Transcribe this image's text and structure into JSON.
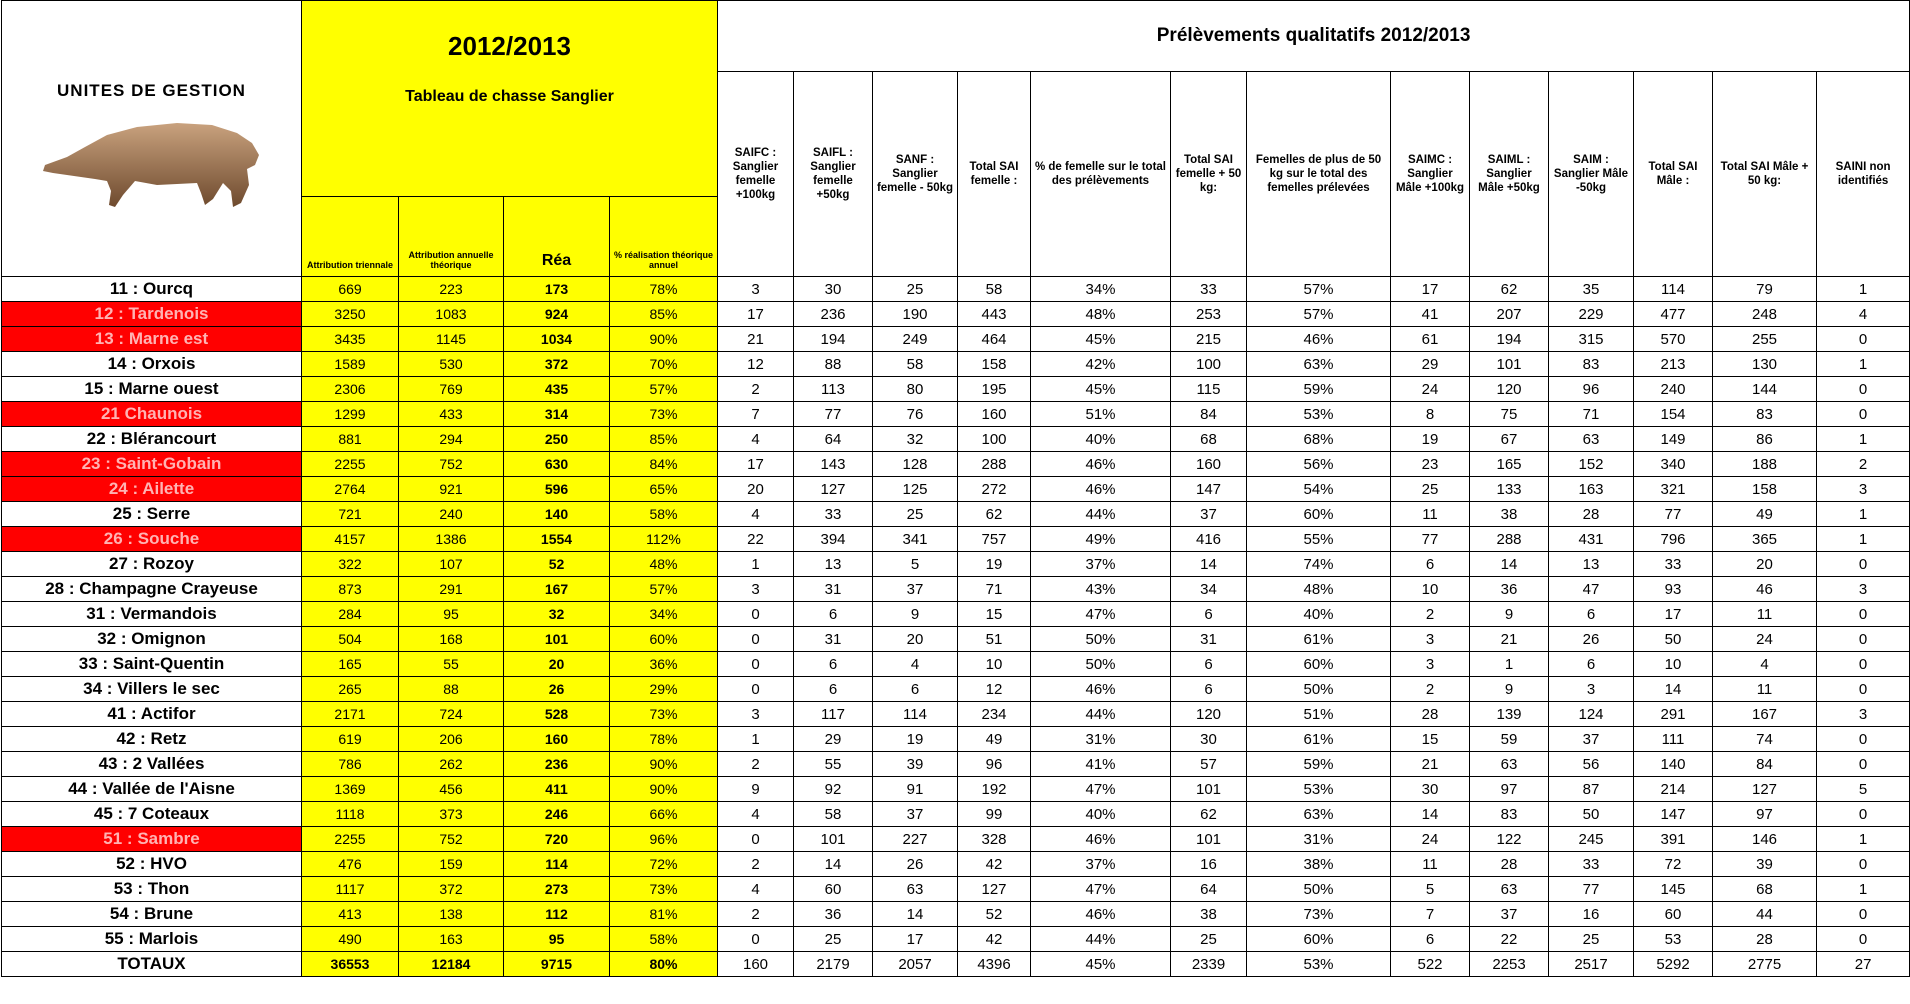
{
  "header": {
    "unit_title": "UNITES DE GESTION",
    "season": "2012/2013",
    "season_subtitle": "Tableau de chasse Sanglier",
    "qualitative_title": "Prélèvements qualitatifs 2012/2013",
    "yellow_columns": [
      "Attribution triennale",
      "Attribution annuelle théorique",
      "Réa",
      "% réalisation théorique annuel"
    ],
    "qualitative_columns": [
      "SAIFC : Sanglier femelle +100kg",
      "SAIFL : Sanglier femelle +50kg",
      "SANF : Sanglier femelle - 50kg",
      "Total SAI femelle :",
      "% de femelle sur le total des prélèvements",
      "Total SAI femelle + 50 kg:",
      "Femelles de plus de 50 kg sur le total des femelles prélevées",
      "SAIMC : Sanglier Mâle +100kg",
      "SAIML : Sanglier Mâle +50kg",
      "SAIM : Sanglier Mâle -50kg",
      "Total SAI Mâle :",
      "Total SAI Mâle + 50 kg:",
      "SAINI non identifiés"
    ]
  },
  "table": {
    "rows": [
      {
        "unit": "11 : Ourcq",
        "cells": [
          669,
          223,
          173,
          "78%",
          3,
          30,
          25,
          58,
          "34%",
          33,
          "57%",
          17,
          62,
          35,
          114,
          79,
          1
        ]
      },
      {
        "unit": "12 : Tardenois",
        "color": "#ff0000",
        "cells": [
          3250,
          1083,
          924,
          "85%",
          17,
          236,
          190,
          443,
          "48%",
          253,
          "57%",
          41,
          207,
          229,
          477,
          248,
          4
        ]
      },
      {
        "unit": "13 : Marne est",
        "color": "#ff0000",
        "cells": [
          3435,
          1145,
          1034,
          "90%",
          21,
          194,
          249,
          464,
          "45%",
          215,
          "46%",
          61,
          194,
          315,
          570,
          255,
          0
        ]
      },
      {
        "unit": "14 : Orxois",
        "cells": [
          1589,
          530,
          372,
          "70%",
          12,
          88,
          58,
          158,
          "42%",
          100,
          "63%",
          29,
          101,
          83,
          213,
          130,
          1
        ]
      },
      {
        "unit": "15 : Marne ouest",
        "cells": [
          2306,
          769,
          435,
          "57%",
          2,
          113,
          80,
          195,
          "45%",
          115,
          "59%",
          24,
          120,
          96,
          240,
          144,
          0
        ]
      },
      {
        "unit": "21 Chaunois",
        "color": "#ff0000",
        "cells": [
          1299,
          433,
          314,
          "73%",
          7,
          77,
          76,
          160,
          "51%",
          84,
          "53%",
          8,
          75,
          71,
          154,
          83,
          0
        ]
      },
      {
        "unit": "22  : Blérancourt",
        "cells": [
          881,
          294,
          250,
          "85%",
          4,
          64,
          32,
          100,
          "40%",
          68,
          "68%",
          19,
          67,
          63,
          149,
          86,
          1
        ]
      },
      {
        "unit": "23 : Saint-Gobain",
        "color": "#ff0000",
        "cells": [
          2255,
          752,
          630,
          "84%",
          17,
          143,
          128,
          288,
          "46%",
          160,
          "56%",
          23,
          165,
          152,
          340,
          188,
          2
        ]
      },
      {
        "unit": "24  : Ailette",
        "color": "#ff0000",
        "cells": [
          2764,
          921,
          596,
          "65%",
          20,
          127,
          125,
          272,
          "46%",
          147,
          "54%",
          25,
          133,
          163,
          321,
          158,
          3
        ]
      },
      {
        "unit": "25 : Serre",
        "cells": [
          721,
          240,
          140,
          "58%",
          4,
          33,
          25,
          62,
          "44%",
          37,
          "60%",
          11,
          38,
          28,
          77,
          49,
          1
        ]
      },
      {
        "unit": "26  : Souche",
        "color": "#ff0000",
        "cells": [
          4157,
          1386,
          1554,
          "112%",
          22,
          394,
          341,
          757,
          "49%",
          416,
          "55%",
          77,
          288,
          431,
          796,
          365,
          1
        ]
      },
      {
        "unit": "27 : Rozoy",
        "cells": [
          322,
          107,
          52,
          "48%",
          1,
          13,
          5,
          19,
          "37%",
          14,
          "74%",
          6,
          14,
          13,
          33,
          20,
          0
        ]
      },
      {
        "unit": "28 : Champagne Crayeuse",
        "cells": [
          873,
          291,
          167,
          "57%",
          3,
          31,
          37,
          71,
          "43%",
          34,
          "48%",
          10,
          36,
          47,
          93,
          46,
          3
        ]
      },
      {
        "unit": "31 : Vermandois",
        "cells": [
          284,
          95,
          32,
          "34%",
          0,
          6,
          9,
          15,
          "47%",
          6,
          "40%",
          2,
          9,
          6,
          17,
          11,
          0
        ]
      },
      {
        "unit": "32 : Omignon",
        "cells": [
          504,
          168,
          101,
          "60%",
          0,
          31,
          20,
          51,
          "50%",
          31,
          "61%",
          3,
          21,
          26,
          50,
          24,
          0
        ]
      },
      {
        "unit": "33  : Saint-Quentin",
        "cells": [
          165,
          55,
          20,
          "36%",
          0,
          6,
          4,
          10,
          "50%",
          6,
          "60%",
          3,
          1,
          6,
          10,
          4,
          0
        ]
      },
      {
        "unit": "34 : Villers le sec",
        "cells": [
          265,
          88,
          26,
          "29%",
          0,
          6,
          6,
          12,
          "46%",
          6,
          "50%",
          2,
          9,
          3,
          14,
          11,
          0
        ]
      },
      {
        "unit": "41 : Actifor",
        "cells": [
          2171,
          724,
          528,
          "73%",
          3,
          117,
          114,
          234,
          "44%",
          120,
          "51%",
          28,
          139,
          124,
          291,
          167,
          3
        ]
      },
      {
        "unit": "42 : Retz",
        "cells": [
          619,
          206,
          160,
          "78%",
          1,
          29,
          19,
          49,
          "31%",
          30,
          "61%",
          15,
          59,
          37,
          111,
          74,
          0
        ]
      },
      {
        "unit": "43 : 2 Vallées",
        "cells": [
          786,
          262,
          236,
          "90%",
          2,
          55,
          39,
          96,
          "41%",
          57,
          "59%",
          21,
          63,
          56,
          140,
          84,
          0
        ]
      },
      {
        "unit": "44 : Vallée de l'Aisne",
        "cells": [
          1369,
          456,
          411,
          "90%",
          9,
          92,
          91,
          192,
          "47%",
          101,
          "53%",
          30,
          97,
          87,
          214,
          127,
          5
        ]
      },
      {
        "unit": "45 : 7 Coteaux",
        "cells": [
          1118,
          373,
          246,
          "66%",
          4,
          58,
          37,
          99,
          "40%",
          62,
          "63%",
          14,
          83,
          50,
          147,
          97,
          0
        ]
      },
      {
        "unit": "51 : Sambre",
        "color": "#ff0000",
        "cells": [
          2255,
          752,
          720,
          "96%",
          0,
          101,
          227,
          328,
          "46%",
          101,
          "31%",
          24,
          122,
          245,
          391,
          146,
          1
        ]
      },
      {
        "unit": "52 : HVO",
        "cells": [
          476,
          159,
          114,
          "72%",
          2,
          14,
          26,
          42,
          "37%",
          16,
          "38%",
          11,
          28,
          33,
          72,
          39,
          0
        ]
      },
      {
        "unit": "53 : Thon",
        "cells": [
          1117,
          372,
          273,
          "73%",
          4,
          60,
          63,
          127,
          "47%",
          64,
          "50%",
          5,
          63,
          77,
          145,
          68,
          1
        ]
      },
      {
        "unit": "54 : Brune",
        "cells": [
          413,
          138,
          112,
          "81%",
          2,
          36,
          14,
          52,
          "46%",
          38,
          "73%",
          7,
          37,
          16,
          60,
          44,
          0
        ]
      },
      {
        "unit": "55 : Marlois",
        "cells": [
          490,
          163,
          95,
          "58%",
          0,
          25,
          17,
          42,
          "44%",
          25,
          "60%",
          6,
          22,
          25,
          53,
          28,
          0
        ]
      },
      {
        "unit": "TOTAUX",
        "cells": [
          36553,
          12184,
          9715,
          "80%",
          160,
          2179,
          2057,
          4396,
          "45%",
          2339,
          "53%",
          522,
          2253,
          2517,
          5292,
          2775,
          27
        ]
      }
    ]
  }
}
